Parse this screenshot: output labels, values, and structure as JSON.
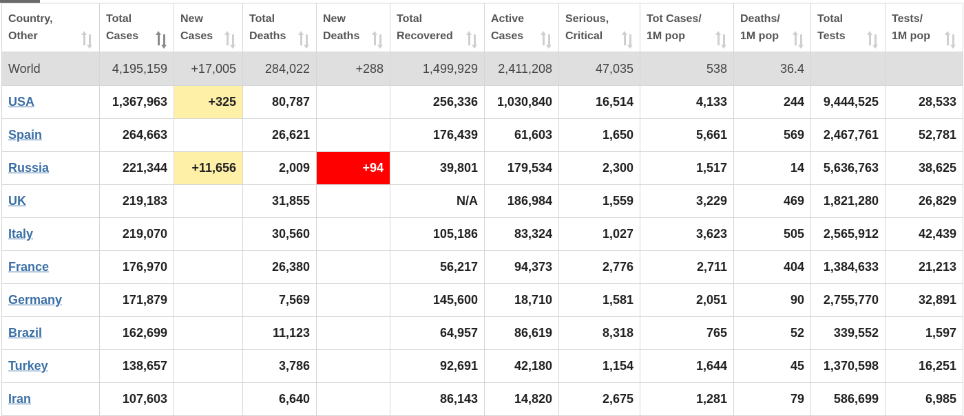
{
  "columns": [
    {
      "line1": "Country,",
      "line2": "Other",
      "sort_active": false
    },
    {
      "line1": "Total",
      "line2": "Cases",
      "sort_active": true
    },
    {
      "line1": "New",
      "line2": "Cases",
      "sort_active": false
    },
    {
      "line1": "Total",
      "line2": "Deaths",
      "sort_active": false
    },
    {
      "line1": "New",
      "line2": "Deaths",
      "sort_active": false
    },
    {
      "line1": "Total",
      "line2": "Recovered",
      "sort_active": false
    },
    {
      "line1": "Active",
      "line2": "Cases",
      "sort_active": false
    },
    {
      "line1": "Serious,",
      "line2": "Critical",
      "sort_active": false
    },
    {
      "line1": "Tot Cases/",
      "line2": "1M pop",
      "sort_active": false
    },
    {
      "line1": "Deaths/",
      "line2": "1M pop",
      "sort_active": false
    },
    {
      "line1": "Total",
      "line2": "Tests",
      "sort_active": false
    },
    {
      "line1": "Tests/",
      "line2": "1M pop",
      "sort_active": false
    }
  ],
  "rows": [
    {
      "world": true,
      "cells": [
        "World",
        "4,195,159",
        "+17,005",
        "284,022",
        "+288",
        "1,499,929",
        "2,411,208",
        "47,035",
        "538",
        "36.4",
        "",
        ""
      ]
    },
    {
      "cells": [
        "USA",
        "1,367,963",
        "+325",
        "80,787",
        "",
        "256,336",
        "1,030,840",
        "16,514",
        "4,133",
        "244",
        "9,444,525",
        "28,533"
      ]
    },
    {
      "cells": [
        "Spain",
        "264,663",
        "",
        "26,621",
        "",
        "176,439",
        "61,603",
        "1,650",
        "5,661",
        "569",
        "2,467,761",
        "52,781"
      ]
    },
    {
      "cells": [
        "Russia",
        "221,344",
        "+11,656",
        "2,009",
        "+94",
        "39,801",
        "179,534",
        "2,300",
        "1,517",
        "14",
        "5,636,763",
        "38,625"
      ]
    },
    {
      "cells": [
        "UK",
        "219,183",
        "",
        "31,855",
        "",
        "N/A",
        "186,984",
        "1,559",
        "3,229",
        "469",
        "1,821,280",
        "26,829"
      ]
    },
    {
      "cells": [
        "Italy",
        "219,070",
        "",
        "30,560",
        "",
        "105,186",
        "83,324",
        "1,027",
        "3,623",
        "505",
        "2,565,912",
        "42,439"
      ]
    },
    {
      "cells": [
        "France",
        "176,970",
        "",
        "26,380",
        "",
        "56,217",
        "94,373",
        "2,776",
        "2,711",
        "404",
        "1,384,633",
        "21,213"
      ]
    },
    {
      "cells": [
        "Germany",
        "171,879",
        "",
        "7,569",
        "",
        "145,600",
        "18,710",
        "1,581",
        "2,051",
        "90",
        "2,755,770",
        "32,891"
      ]
    },
    {
      "cells": [
        "Brazil",
        "162,699",
        "",
        "11,123",
        "",
        "64,957",
        "86,619",
        "8,318",
        "765",
        "52",
        "339,552",
        "1,597"
      ]
    },
    {
      "cells": [
        "Turkey",
        "138,657",
        "",
        "3,786",
        "",
        "92,691",
        "42,180",
        "1,154",
        "1,644",
        "45",
        "1,370,598",
        "16,251"
      ]
    },
    {
      "cells": [
        "Iran",
        "107,603",
        "",
        "6,640",
        "",
        "86,143",
        "14,820",
        "2,675",
        "1,281",
        "79",
        "586,699",
        "6,985"
      ]
    }
  ],
  "colors": {
    "link": "#3a6fa6",
    "new_cases_highlight": "#fff0a8",
    "new_deaths_highlight": "#ff0000",
    "world_row": "#dfdfdf"
  }
}
